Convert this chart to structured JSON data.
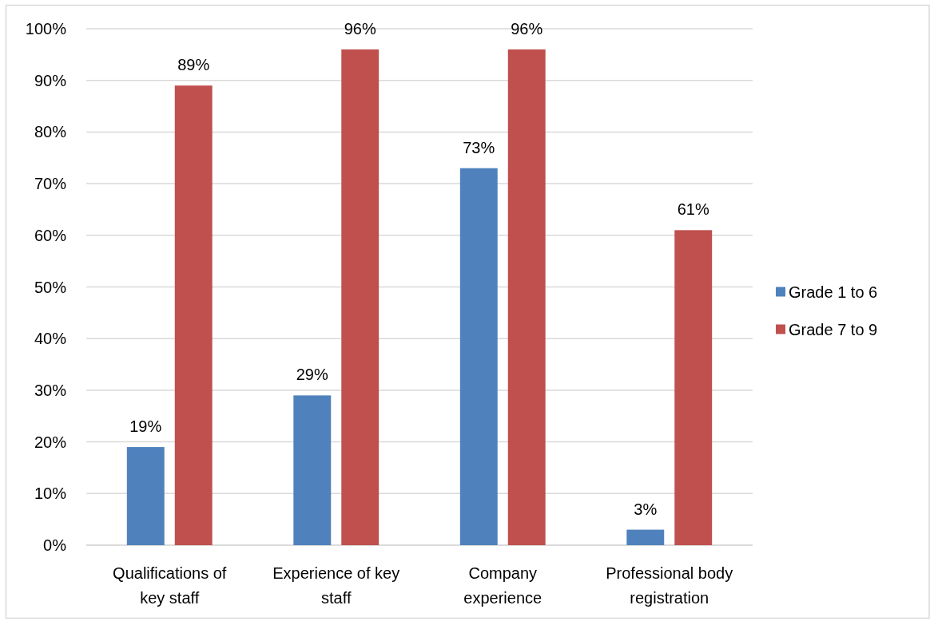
{
  "chart_data": {
    "type": "bar",
    "categories": [
      "Qualifications of key staff",
      "Experience of key staff",
      "Company experience",
      "Professional body registration"
    ],
    "series": [
      {
        "name": "Grade 1 to 6",
        "color": "#4f81bd",
        "values": [
          19,
          29,
          73,
          3
        ],
        "value_labels": [
          "19%",
          "29%",
          "73%",
          "3%"
        ]
      },
      {
        "name": "Grade 7 to 9",
        "color": "#c0504d",
        "values": [
          89,
          96,
          96,
          61
        ],
        "value_labels": [
          "89%",
          "96%",
          "96%",
          "61%"
        ]
      }
    ],
    "ylim": [
      0,
      100
    ],
    "yticks": [
      {
        "value": 0,
        "label": "0%"
      },
      {
        "value": 10,
        "label": "10%"
      },
      {
        "value": 20,
        "label": "20%"
      },
      {
        "value": 30,
        "label": "30%"
      },
      {
        "value": 40,
        "label": "40%"
      },
      {
        "value": 50,
        "label": "50%"
      },
      {
        "value": 60,
        "label": "60%"
      },
      {
        "value": 70,
        "label": "70%"
      },
      {
        "value": 80,
        "label": "80%"
      },
      {
        "value": 90,
        "label": "90%"
      },
      {
        "value": 100,
        "label": "100%"
      }
    ],
    "grid": "y",
    "legend": "right"
  }
}
